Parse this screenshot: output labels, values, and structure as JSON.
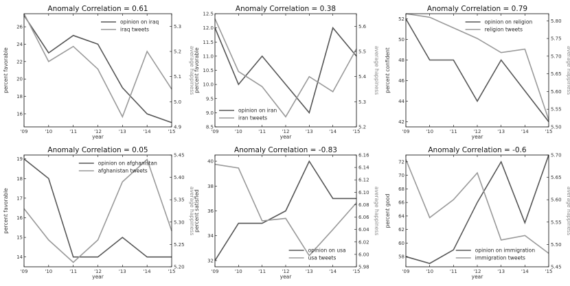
{
  "chart_data": [
    {
      "type": "line",
      "title": "Anomaly Correlation = 0.61",
      "categories": [
        "'09",
        "'10",
        "'11",
        "'12",
        "'13",
        "'14",
        "'15"
      ],
      "xlabel": "year",
      "ylabel": "percent favorable",
      "y2label": "average happiness",
      "ylim": [
        14.5,
        27.5
      ],
      "yticks": [
        16,
        18,
        20,
        22,
        24,
        26
      ],
      "y2lim": [
        4.9,
        5.35
      ],
      "y2ticks": [
        "4.9",
        "5.0",
        "5.1",
        "5.2",
        "5.3"
      ],
      "legend": "top-right",
      "series": [
        {
          "name": "opinion on iraq",
          "axis": "left",
          "color": "#555555",
          "values": [
            27.3,
            23,
            25,
            24,
            19,
            16,
            15
          ]
        },
        {
          "name": "iraq tweets",
          "axis": "right",
          "color": "#999999",
          "values": [
            5.35,
            5.16,
            5.22,
            5.13,
            4.94,
            5.2,
            5.05
          ]
        }
      ]
    },
    {
      "type": "line",
      "title": "Anomaly Correlation = 0.38",
      "categories": [
        "'09",
        "'10",
        "'11",
        "'12",
        "'13",
        "'14",
        "'15"
      ],
      "xlabel": "year",
      "ylabel": "percent favorable",
      "y2label": "average happiness",
      "ylim": [
        8.5,
        12.5
      ],
      "yticks": [
        "8.5",
        "9.0",
        "9.5",
        "10.0",
        "10.5",
        "11.0",
        "11.5",
        "12.0",
        "12.5"
      ],
      "y2lim": [
        5.2,
        5.65
      ],
      "y2ticks": [
        "5.2",
        "5.3",
        "5.4",
        "5.5",
        "5.6"
      ],
      "legend": "bottom-left",
      "series": [
        {
          "name": "opinion on iran",
          "axis": "left",
          "color": "#555555",
          "values": [
            12,
            10,
            11,
            10,
            9,
            12,
            11
          ]
        },
        {
          "name": "iran tweets",
          "axis": "right",
          "color": "#999999",
          "values": [
            5.63,
            5.42,
            5.36,
            5.24,
            5.4,
            5.34,
            5.51
          ]
        }
      ]
    },
    {
      "type": "line",
      "title": "Anomaly Correlation = 0.79",
      "categories": [
        "'09",
        "'10",
        "'11",
        "'12",
        "'13",
        "'14",
        "'15"
      ],
      "xlabel": "year",
      "ylabel": "percent confident",
      "y2label": "average happiness",
      "ylim": [
        41.5,
        52.5
      ],
      "yticks": [
        42,
        44,
        46,
        48,
        50,
        52
      ],
      "y2lim": [
        5.5,
        5.82
      ],
      "y2ticks": [
        "5.50",
        "5.55",
        "5.60",
        "5.65",
        "5.70",
        "5.75",
        "5.80"
      ],
      "legend": "top-right",
      "series": [
        {
          "name": "opinion on religion",
          "axis": "left",
          "color": "#555555",
          "values": [
            52,
            48,
            48,
            44,
            48,
            45,
            42
          ]
        },
        {
          "name": "religion tweets",
          "axis": "right",
          "color": "#999999",
          "values": [
            5.82,
            5.81,
            5.78,
            5.75,
            5.71,
            5.72,
            5.52
          ]
        }
      ]
    },
    {
      "type": "line",
      "title": "Anomaly Correlation = 0.05",
      "categories": [
        "'09",
        "'10",
        "'11",
        "'12",
        "'13",
        "'14",
        "'15"
      ],
      "xlabel": "year",
      "ylabel": "percent favorable",
      "y2label": "average happiness",
      "ylim": [
        13.5,
        19.2
      ],
      "yticks": [
        14,
        15,
        16,
        17,
        18,
        19
      ],
      "y2lim": [
        5.2,
        5.45
      ],
      "y2ticks": [
        "5.20",
        "5.25",
        "5.30",
        "5.35",
        "5.40",
        "5.45"
      ],
      "legend": "top-right",
      "series": [
        {
          "name": "opinion on afghanistan",
          "axis": "left",
          "color": "#555555",
          "values": [
            19,
            18,
            14,
            14,
            15,
            14,
            14
          ]
        },
        {
          "name": "afghanistan tweets",
          "axis": "right",
          "color": "#999999",
          "values": [
            5.33,
            5.26,
            5.21,
            5.26,
            5.39,
            5.44,
            5.28
          ]
        }
      ]
    },
    {
      "type": "line",
      "title": "Anomaly Correlation = -0.83",
      "categories": [
        "'09",
        "'10",
        "'11",
        "'12",
        "'13",
        "'14",
        "'15"
      ],
      "xlabel": "year",
      "ylabel": "percent satisfied",
      "y2label": "average happiness",
      "ylim": [
        31.5,
        40.5
      ],
      "yticks": [
        32,
        34,
        36,
        38,
        40
      ],
      "y2lim": [
        5.98,
        6.16
      ],
      "y2ticks": [
        "5.98",
        "6.00",
        "6.02",
        "6.04",
        "6.06",
        "6.08",
        "6.10",
        "6.12",
        "6.14",
        "6.16"
      ],
      "legend": "bottom-right",
      "series": [
        {
          "name": "opinion on usa",
          "axis": "left",
          "color": "#555555",
          "values": [
            32,
            35,
            35,
            36,
            40,
            37,
            37
          ]
        },
        {
          "name": "usa tweets",
          "axis": "right",
          "color": "#999999",
          "values": [
            6.145,
            6.139,
            6.054,
            6.058,
            5.998,
            6.04,
            6.083
          ]
        }
      ]
    },
    {
      "type": "line",
      "title": "Anomaly Correlation = -0.6",
      "categories": [
        "'09",
        "'10",
        "'11",
        "'12",
        "'13",
        "'14",
        "'15"
      ],
      "xlabel": "year",
      "ylabel": "percent good",
      "y2label": "average happiness",
      "ylim": [
        56.5,
        73
      ],
      "yticks": [
        58,
        60,
        62,
        64,
        66,
        68,
        70,
        72
      ],
      "y2lim": [
        5.45,
        5.7
      ],
      "y2ticks": [
        "5.45",
        "5.50",
        "5.55",
        "5.60",
        "5.65",
        "5.70"
      ],
      "legend": "bottom-right",
      "series": [
        {
          "name": "opinion on immigration",
          "axis": "left",
          "color": "#555555",
          "values": [
            58,
            57,
            59,
            66,
            72,
            63,
            73
          ]
        },
        {
          "name": "immigration tweets",
          "axis": "right",
          "color": "#999999",
          "values": [
            5.69,
            5.56,
            5.6,
            5.66,
            5.51,
            5.52,
            5.48
          ]
        }
      ]
    }
  ]
}
